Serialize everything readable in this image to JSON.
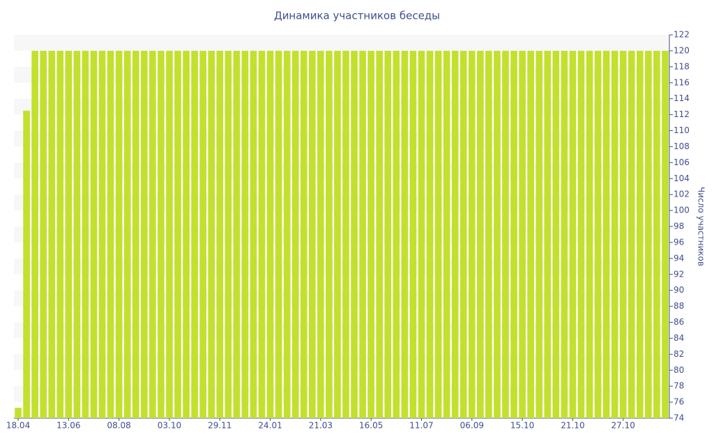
{
  "chart_data": {
    "type": "bar",
    "title": "Динамика участников беседы",
    "y_axis_label": "Число участников",
    "categories": [
      "18.04",
      null,
      null,
      null,
      null,
      null,
      "13.06",
      null,
      null,
      null,
      null,
      null,
      "08.08",
      null,
      null,
      null,
      null,
      null,
      "03.10",
      null,
      null,
      null,
      null,
      null,
      "29.11",
      null,
      null,
      null,
      null,
      null,
      "24.01",
      null,
      null,
      null,
      null,
      null,
      "21.03",
      null,
      null,
      null,
      null,
      null,
      "16.05",
      null,
      null,
      null,
      null,
      null,
      "11.07",
      null,
      null,
      null,
      null,
      null,
      "06.09",
      null,
      null,
      null,
      null,
      null,
      "15.10",
      null,
      null,
      null,
      null,
      null,
      "21.10",
      null,
      null,
      null,
      null,
      null,
      "27.10",
      null,
      null,
      null,
      null,
      null
    ],
    "values": [
      75.3,
      112.5,
      120,
      120,
      120,
      120,
      120,
      120,
      120,
      120,
      120,
      120,
      120,
      120,
      120,
      120,
      120,
      120,
      120,
      120,
      120,
      120,
      120,
      120,
      120,
      120,
      120,
      120,
      120,
      120,
      120,
      120,
      120,
      120,
      120,
      120,
      120,
      120,
      120,
      120,
      120,
      120,
      120,
      120,
      120,
      120,
      120,
      120,
      120,
      120,
      120,
      120,
      120,
      120,
      120,
      120,
      120,
      120,
      120,
      120,
      120,
      120,
      120,
      120,
      120,
      120,
      120,
      120,
      120,
      120,
      120,
      120,
      120,
      120,
      120,
      120,
      120,
      120
    ],
    "color": "#c3e02e",
    "ylim": [
      74,
      122
    ],
    "yticks": [
      74,
      76,
      78,
      80,
      82,
      84,
      86,
      88,
      90,
      92,
      94,
      96,
      98,
      100,
      102,
      104,
      106,
      108,
      110,
      112,
      114,
      116,
      118,
      120,
      122
    ],
    "y_axis_side": "right",
    "grid": true
  }
}
